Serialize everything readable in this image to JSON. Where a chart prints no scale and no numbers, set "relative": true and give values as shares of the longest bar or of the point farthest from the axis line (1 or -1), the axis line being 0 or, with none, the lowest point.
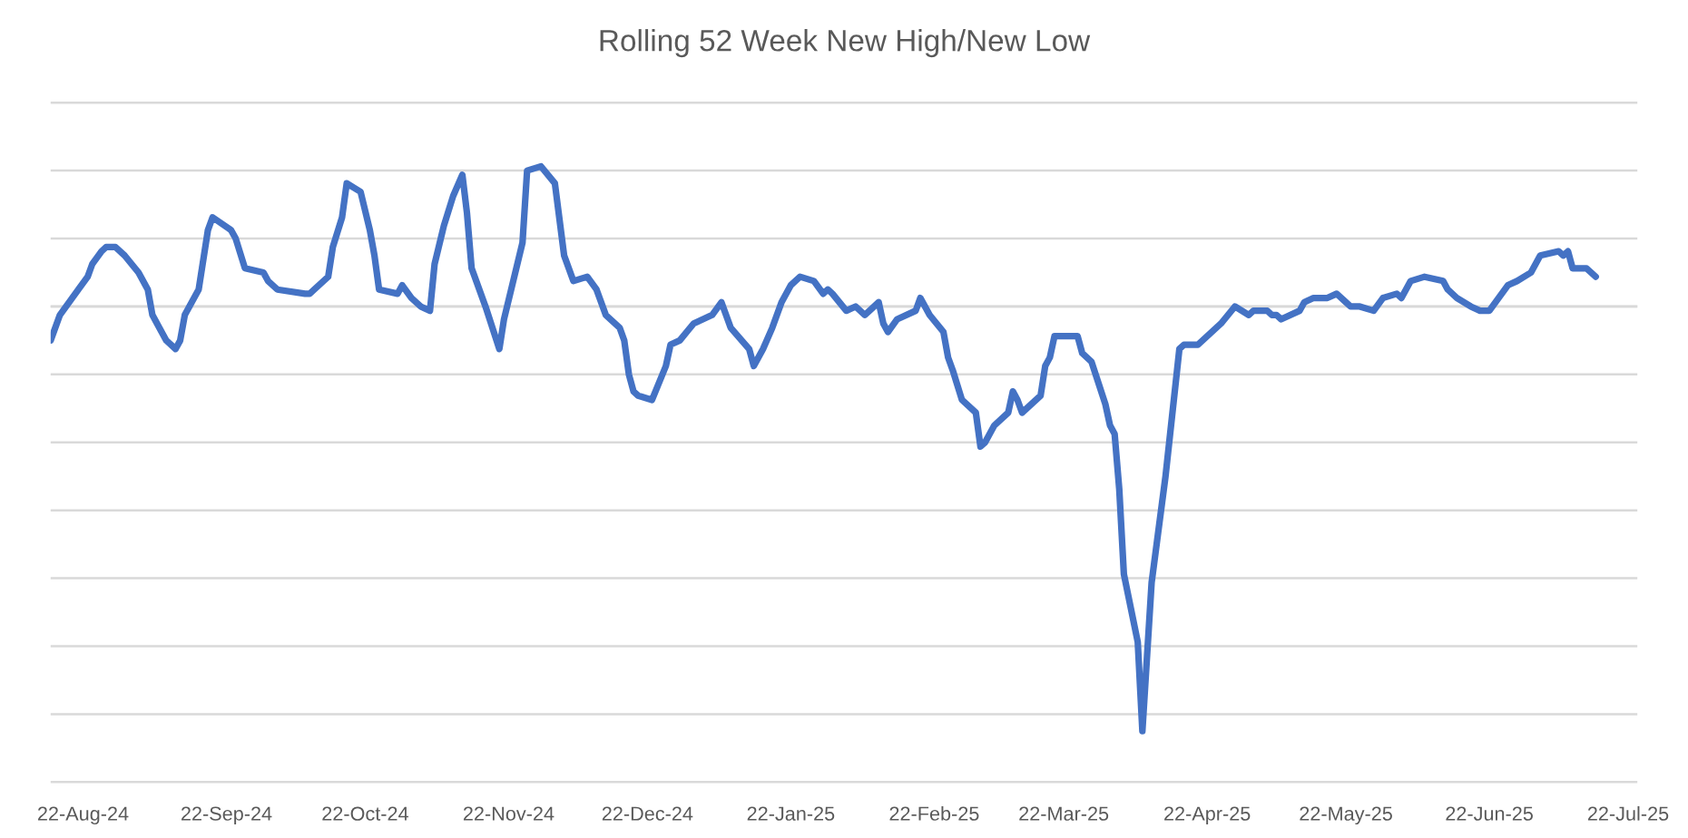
{
  "chart_data": {
    "type": "line",
    "title": "Rolling 52 Week New High/New Low",
    "relative": true,
    "x": [
      "2024-08-15",
      "2024-08-17",
      "2024-08-21",
      "2024-08-23",
      "2024-08-24",
      "2024-08-26",
      "2024-08-27",
      "2024-08-29",
      "2024-08-31",
      "2024-09-03",
      "2024-09-05",
      "2024-09-06",
      "2024-09-07",
      "2024-09-09",
      "2024-09-11",
      "2024-09-12",
      "2024-09-13",
      "2024-09-16",
      "2024-09-18",
      "2024-09-19",
      "2024-09-23",
      "2024-09-24",
      "2024-09-26",
      "2024-09-30",
      "2024-10-01",
      "2024-10-03",
      "2024-10-09",
      "2024-10-10",
      "2024-10-11",
      "2024-10-14",
      "2024-10-15",
      "2024-10-17",
      "2024-10-18",
      "2024-10-21",
      "2024-10-23",
      "2024-10-24",
      "2024-10-25",
      "2024-10-29",
      "2024-10-30",
      "2024-11-01",
      "2024-11-03",
      "2024-11-05",
      "2024-11-06",
      "2024-11-08",
      "2024-11-10",
      "2024-11-12",
      "2024-11-13",
      "2024-11-14",
      "2024-11-17",
      "2024-11-20",
      "2024-11-21",
      "2024-11-25",
      "2024-11-26",
      "2024-11-29",
      "2024-12-02",
      "2024-12-04",
      "2024-12-06",
      "2024-12-09",
      "2024-12-11",
      "2024-12-13",
      "2024-12-16",
      "2024-12-17",
      "2024-12-18",
      "2024-12-19",
      "2024-12-20",
      "2024-12-23",
      "2024-12-26",
      "2024-12-27",
      "2024-12-29",
      "2025-01-01",
      "2025-01-03",
      "2025-01-05",
      "2025-01-07",
      "2025-01-09",
      "2025-01-13",
      "2025-01-14",
      "2025-01-16",
      "2025-01-18",
      "2025-01-20",
      "2025-01-22",
      "2025-01-24",
      "2025-01-27",
      "2025-01-29",
      "2025-01-30",
      "2025-01-31",
      "2025-02-03",
      "2025-02-05",
      "2025-02-07",
      "2025-02-10",
      "2025-02-11",
      "2025-02-12",
      "2025-02-14",
      "2025-02-18",
      "2025-02-19",
      "2025-02-21",
      "2025-02-24",
      "2025-02-25",
      "2025-02-26",
      "2025-02-28",
      "2025-03-03",
      "2025-03-04",
      "2025-03-05",
      "2025-03-07",
      "2025-03-10",
      "2025-03-11",
      "2025-03-12",
      "2025-03-13",
      "2025-03-17",
      "2025-03-18",
      "2025-03-19",
      "2025-03-20",
      "2025-03-25",
      "2025-03-26",
      "2025-03-28",
      "2025-03-31",
      "2025-04-01",
      "2025-04-02",
      "2025-04-03",
      "2025-04-04",
      "2025-04-07",
      "2025-04-08",
      "2025-04-10",
      "2025-04-13",
      "2025-04-16",
      "2025-04-17",
      "2025-04-20",
      "2025-04-25",
      "2025-04-28",
      "2025-05-01",
      "2025-05-02",
      "2025-05-05",
      "2025-05-06",
      "2025-05-07",
      "2025-05-08",
      "2025-05-12",
      "2025-05-13",
      "2025-05-15",
      "2025-05-18",
      "2025-05-20",
      "2025-05-22",
      "2025-05-23",
      "2025-05-25",
      "2025-05-28",
      "2025-05-30",
      "2025-06-02",
      "2025-06-03",
      "2025-06-05",
      "2025-06-08",
      "2025-06-12",
      "2025-06-13",
      "2025-06-15",
      "2025-06-18",
      "2025-06-20",
      "2025-06-22",
      "2025-06-26",
      "2025-06-28",
      "2025-07-01",
      "2025-07-03",
      "2025-07-07",
      "2025-07-08",
      "2025-07-09",
      "2025-07-10",
      "2025-07-13",
      "2025-07-15"
    ],
    "series": [
      {
        "color": "#4472c4",
        "values": [
          -0.08,
          -0.02,
          0.04,
          0.07,
          0.1,
          0.13,
          0.14,
          0.14,
          0.12,
          0.08,
          0.04,
          -0.02,
          -0.04,
          -0.08,
          -0.1,
          -0.08,
          -0.02,
          0.04,
          0.18,
          0.21,
          0.18,
          0.16,
          0.09,
          0.08,
          0.06,
          0.04,
          0.03,
          0.03,
          0.04,
          0.07,
          0.14,
          0.21,
          0.29,
          0.27,
          0.18,
          0.12,
          0.04,
          0.03,
          0.05,
          0.02,
          0.0,
          -0.01,
          0.1,
          0.19,
          0.26,
          0.31,
          0.22,
          0.09,
          0.0,
          -0.1,
          -0.03,
          0.15,
          0.32,
          0.33,
          0.29,
          0.12,
          0.06,
          0.07,
          0.04,
          -0.02,
          -0.05,
          -0.08,
          -0.16,
          -0.2,
          -0.21,
          -0.22,
          -0.14,
          -0.09,
          -0.08,
          -0.04,
          -0.03,
          -0.02,
          0.01,
          -0.05,
          -0.1,
          -0.14,
          -0.1,
          -0.05,
          0.01,
          0.05,
          0.07,
          0.06,
          0.03,
          0.04,
          0.03,
          -0.01,
          0.0,
          -0.02,
          0.01,
          -0.04,
          -0.06,
          -0.03,
          -0.01,
          0.02,
          -0.02,
          -0.06,
          -0.12,
          -0.15,
          -0.22,
          -0.25,
          -0.33,
          -0.32,
          -0.28,
          -0.25,
          -0.2,
          -0.22,
          -0.25,
          -0.21,
          -0.14,
          -0.12,
          -0.07,
          -0.07,
          -0.11,
          -0.13,
          -0.23,
          -0.28,
          -0.3,
          -0.43,
          -0.63,
          -0.79,
          -1,
          -0.65,
          -0.4,
          -0.1,
          -0.09,
          -0.09,
          -0.04,
          0.0,
          -0.02,
          -0.01,
          -0.01,
          -0.02,
          -0.02,
          -0.03,
          -0.01,
          0.01,
          0.02,
          0.02,
          0.03,
          0.01,
          0.0,
          0.0,
          -0.01,
          0.02,
          0.03,
          0.02,
          0.06,
          0.07,
          0.06,
          0.04,
          0.02,
          0.0,
          -0.01,
          -0.01,
          0.05,
          0.06,
          0.08,
          0.12,
          0.13,
          0.12,
          0.13,
          0.09,
          0.09,
          0.07
        ]
      }
    ],
    "xlim": [
      "2024-08-15",
      "2025-07-24"
    ],
    "xticks": [
      {
        "value": "2024-08-22",
        "label": "22-Aug-24"
      },
      {
        "value": "2024-09-22",
        "label": "22-Sep-24"
      },
      {
        "value": "2024-10-22",
        "label": "22-Oct-24"
      },
      {
        "value": "2024-11-22",
        "label": "22-Nov-24"
      },
      {
        "value": "2024-12-22",
        "label": "22-Dec-24"
      },
      {
        "value": "2025-01-22",
        "label": "22-Jan-25"
      },
      {
        "value": "2025-02-22",
        "label": "22-Feb-25"
      },
      {
        "value": "2025-03-22",
        "label": "22-Mar-25"
      },
      {
        "value": "2025-04-22",
        "label": "22-Apr-25"
      },
      {
        "value": "2025-05-22",
        "label": "22-May-25"
      },
      {
        "value": "2025-06-22",
        "label": "22-Jun-25"
      },
      {
        "value": "2025-07-22",
        "label": "22-Jul-25"
      }
    ],
    "grid": "y",
    "tick_labels": "x",
    "line_style": "solid"
  }
}
